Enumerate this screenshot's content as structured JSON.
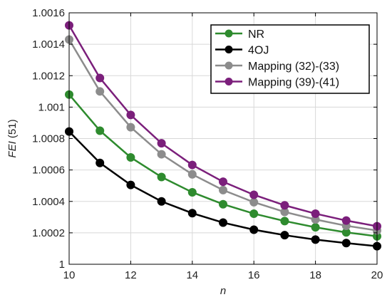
{
  "chart_data": {
    "type": "line",
    "xlabel": "n",
    "ylabel": {
      "italic": "FEI",
      "rest": " (51)"
    },
    "xlim": [
      10,
      20
    ],
    "ylim": [
      1.0,
      1.0016
    ],
    "xticks": [
      "10",
      "12",
      "14",
      "16",
      "18",
      "20"
    ],
    "xtick_values": [
      10,
      12,
      14,
      16,
      18,
      20
    ],
    "yticks": [
      "1",
      "1.0002",
      "1.0004",
      "1.0006",
      "1.0008",
      "1.001",
      "1.0012",
      "1.0014",
      "1.0016"
    ],
    "ytick_values": [
      1.0,
      1.0002,
      1.0004,
      1.0006,
      1.0008,
      1.001,
      1.0012,
      1.0014,
      1.0016
    ],
    "grid": true,
    "legend_position": "top-right",
    "x": [
      10,
      11,
      12,
      13,
      14,
      15,
      16,
      17,
      18,
      19,
      20
    ],
    "series": [
      {
        "name": "NR",
        "color": "#2e8b2e",
        "values": [
          1.00108,
          1.00085,
          1.00068,
          1.000555,
          1.000458,
          1.000382,
          1.000322,
          1.000275,
          1.000235,
          1.000203,
          1.000178
        ]
      },
      {
        "name": "4OJ",
        "color": "#000000",
        "values": [
          1.000845,
          1.000645,
          1.000505,
          1.0004,
          1.000325,
          1.000265,
          1.00022,
          1.000185,
          1.000157,
          1.000135,
          1.000115
        ]
      },
      {
        "name": "Mapping (32)-(33)",
        "color": "#8c8c8c",
        "values": [
          1.00143,
          1.0011,
          1.000872,
          1.0007,
          1.000572,
          1.000472,
          1.000395,
          1.000333,
          1.000285,
          1.000245,
          1.000215
        ]
      },
      {
        "name": "Mapping (39)-(41)",
        "color": "#7b1f7b",
        "values": [
          1.00152,
          1.001185,
          1.00095,
          1.00077,
          1.000632,
          1.000525,
          1.000442,
          1.000375,
          1.000322,
          1.000278,
          1.000242
        ]
      }
    ]
  }
}
